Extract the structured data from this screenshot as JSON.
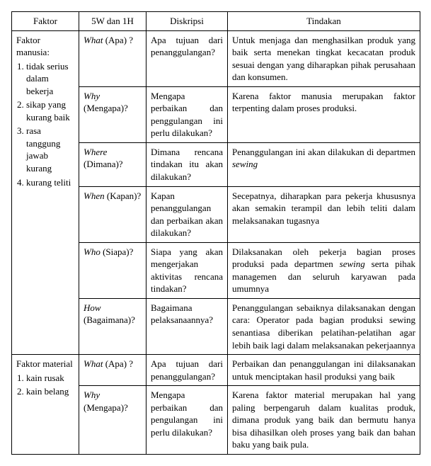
{
  "header": {
    "col1": "Faktor",
    "col2": "5W dan 1H",
    "col3": "Diskripsi",
    "col4": "Tindakan"
  },
  "factor1": {
    "title": "Faktor manusia:",
    "items": [
      "tidak serius dalam bekerja",
      "sikap yang kurang baik",
      "rasa tanggung jawab kurang",
      "kurang teliti"
    ],
    "rows": {
      "what": {
        "w_en": "What",
        "w_id": " (Apa) ?",
        "desc": "Apa tujuan dari penanggulangan?",
        "act": "Untuk menjaga dan menghasilkan produk yang baik serta menekan tingkat kecacatan produk sesuai dengan yang diharapkan pihak perusahaan dan konsumen."
      },
      "why": {
        "w_en": "Why",
        "w_id": " (Mengapa)?",
        "desc": "Mengapa perbaikan dan penggulangan ini perlu dilakukan?",
        "act": "Karena faktor manusia merupakan faktor terpenting dalam proses produksi."
      },
      "where": {
        "w_en": "Where",
        "w_id": " (Dimana)?",
        "desc": "Dimana rencana tindakan itu akan dilakukan?",
        "act_pre": "Penanggulangan ini akan dilakukan di departmen ",
        "act_it": "sewing"
      },
      "when": {
        "w_en": "When",
        "w_id": " (Kapan)?",
        "desc": "Kapan penanggulangan dan perbaikan akan dilakukan?",
        "act": "Secepatnya, diharapkan para pekerja khususnya akan semakin terampil dan lebih teliti dalam melaksanakan tugasnya"
      },
      "who": {
        "w_en": "Who",
        "w_id": " (Siapa)?",
        "desc": "Siapa yang akan mengerjakan aktivitas rencana tindakan?",
        "act_pre": "Dilaksanakan oleh pekerja bagian proses produksi pada departmen ",
        "act_it": "sewing",
        "act_post": " serta pihak managemen dan seluruh karyawan pada umumnya"
      },
      "how": {
        "w_en": "How",
        "w_id": " (Bagaimana)?",
        "desc": "Bagaimana pelaksanaannya?",
        "act": "Penanggulangan sebaiknya dilaksanakan dengan cara: Operator pada bagian produksi sewing senantiasa diberikan pelatihan-pelatihan agar lebih baik lagi dalam melaksanakan pekerjaannya"
      }
    }
  },
  "factor2": {
    "title": "Faktor material",
    "items": [
      "kain rusak",
      "kain belang"
    ],
    "rows": {
      "what": {
        "w_en": "What",
        "w_id": " (Apa) ?",
        "desc": "Apa tujuan dari penanggulangan?",
        "act": "Perbaikan dan penanggulangan ini dilaksanakan untuk menciptakan hasil produksi yang baik"
      },
      "why": {
        "w_en": "Why",
        "w_id": " (Mengapa)?",
        "desc": "Mengapa perbaikan dan pengulangan ini perlu dilakukan?",
        "act": "Karena faktor material merupakan hal yang paling berpengaruh dalam kualitas produk, dimana produk yang baik dan bermutu hanya bisa dihasilkan oleh proses yang baik dan bahan baku yang baik pula."
      }
    }
  }
}
